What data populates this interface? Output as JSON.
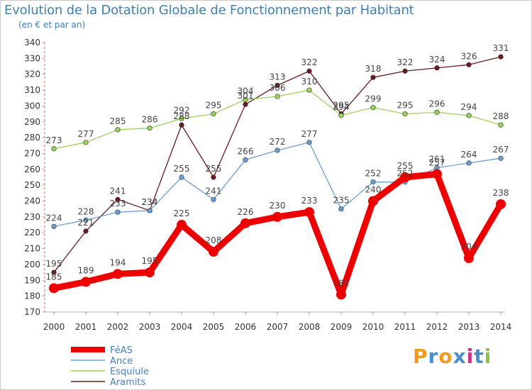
{
  "chart_data": {
    "type": "line",
    "title": "Evolution de la Dotation Globale de Fonctionnement par Habitant",
    "subtitle": "(en € et par an)",
    "categories": [
      "2000",
      "2001",
      "2002",
      "2003",
      "2004",
      "2005",
      "2006",
      "2007",
      "2008",
      "2009",
      "2010",
      "2011",
      "2012",
      "2013",
      "2014"
    ],
    "ylim": [
      170,
      340
    ],
    "yticks": [
      170,
      180,
      190,
      200,
      210,
      220,
      230,
      240,
      250,
      260,
      270,
      280,
      290,
      300,
      310,
      320,
      330,
      340
    ],
    "grid": false,
    "series": [
      {
        "name": "Aramits",
        "color": "#6b1a1f",
        "values": [
          195,
          221,
          241,
          234,
          288,
          255,
          301,
          313,
          322,
          295,
          318,
          322,
          324,
          326,
          331
        ]
      },
      {
        "name": "Esquiule",
        "color": "#9ad35b",
        "values": [
          273,
          277,
          285,
          286,
          292,
          295,
          304,
          306,
          310,
          294,
          299,
          295,
          296,
          294,
          288
        ]
      },
      {
        "name": "Ance",
        "color": "#6a9ed3",
        "values": [
          224,
          228,
          233,
          234,
          255,
          241,
          266,
          272,
          277,
          235,
          252,
          252,
          261,
          264,
          267
        ]
      },
      {
        "name": "FéAS",
        "color": "#ee0000",
        "values": [
          185,
          189,
          194,
          195,
          225,
          208,
          226,
          230,
          233,
          181,
          240,
          255,
          257,
          204,
          238
        ]
      }
    ],
    "legend": [
      "FéAS",
      "Ance",
      "Esquiule",
      "Aramits"
    ],
    "legend_position": "bottom-left"
  },
  "logo": {
    "text": "Proxiti",
    "letters": [
      "P",
      "r",
      "o",
      "x",
      "i",
      "t",
      "i"
    ],
    "colors": [
      "#f39a1f",
      "#4c8ec9",
      "#f39a1f",
      "#4c8ec9",
      "#cc2f86",
      "#4c8ec9",
      "#8cc63f"
    ]
  }
}
